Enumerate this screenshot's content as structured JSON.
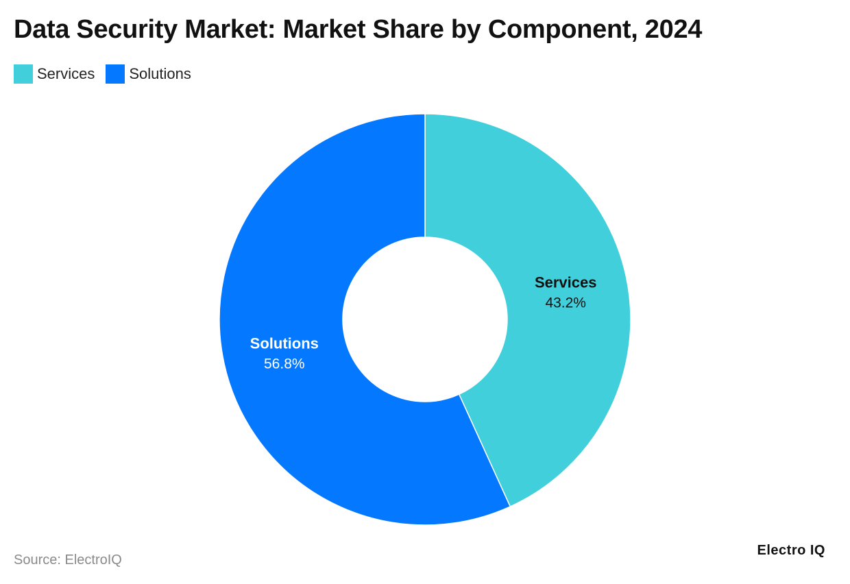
{
  "header": {
    "title": "Data Security Market: Market Share by Component, 2024"
  },
  "chart_data": {
    "type": "pie",
    "subtype": "donut",
    "title": "Data Security Market: Market Share by Component, 2024",
    "categories": [
      "Services",
      "Solutions"
    ],
    "values": [
      43.2,
      56.8
    ],
    "value_labels": [
      "43.2%",
      "56.8%"
    ],
    "unit": "%",
    "colors": [
      "#41D0DB",
      "#0479FF"
    ],
    "label_colors": [
      "#111111",
      "#FFFFFF"
    ],
    "legend_position": "top-left",
    "start_angle": "12 o'clock",
    "direction": "clockwise"
  },
  "legend": {
    "items": [
      {
        "label": "Services",
        "color": "#41D0DB"
      },
      {
        "label": "Solutions",
        "color": "#0479FF"
      }
    ]
  },
  "footer": {
    "source": "Source: ElectroIQ",
    "brand": "Electro IQ"
  }
}
